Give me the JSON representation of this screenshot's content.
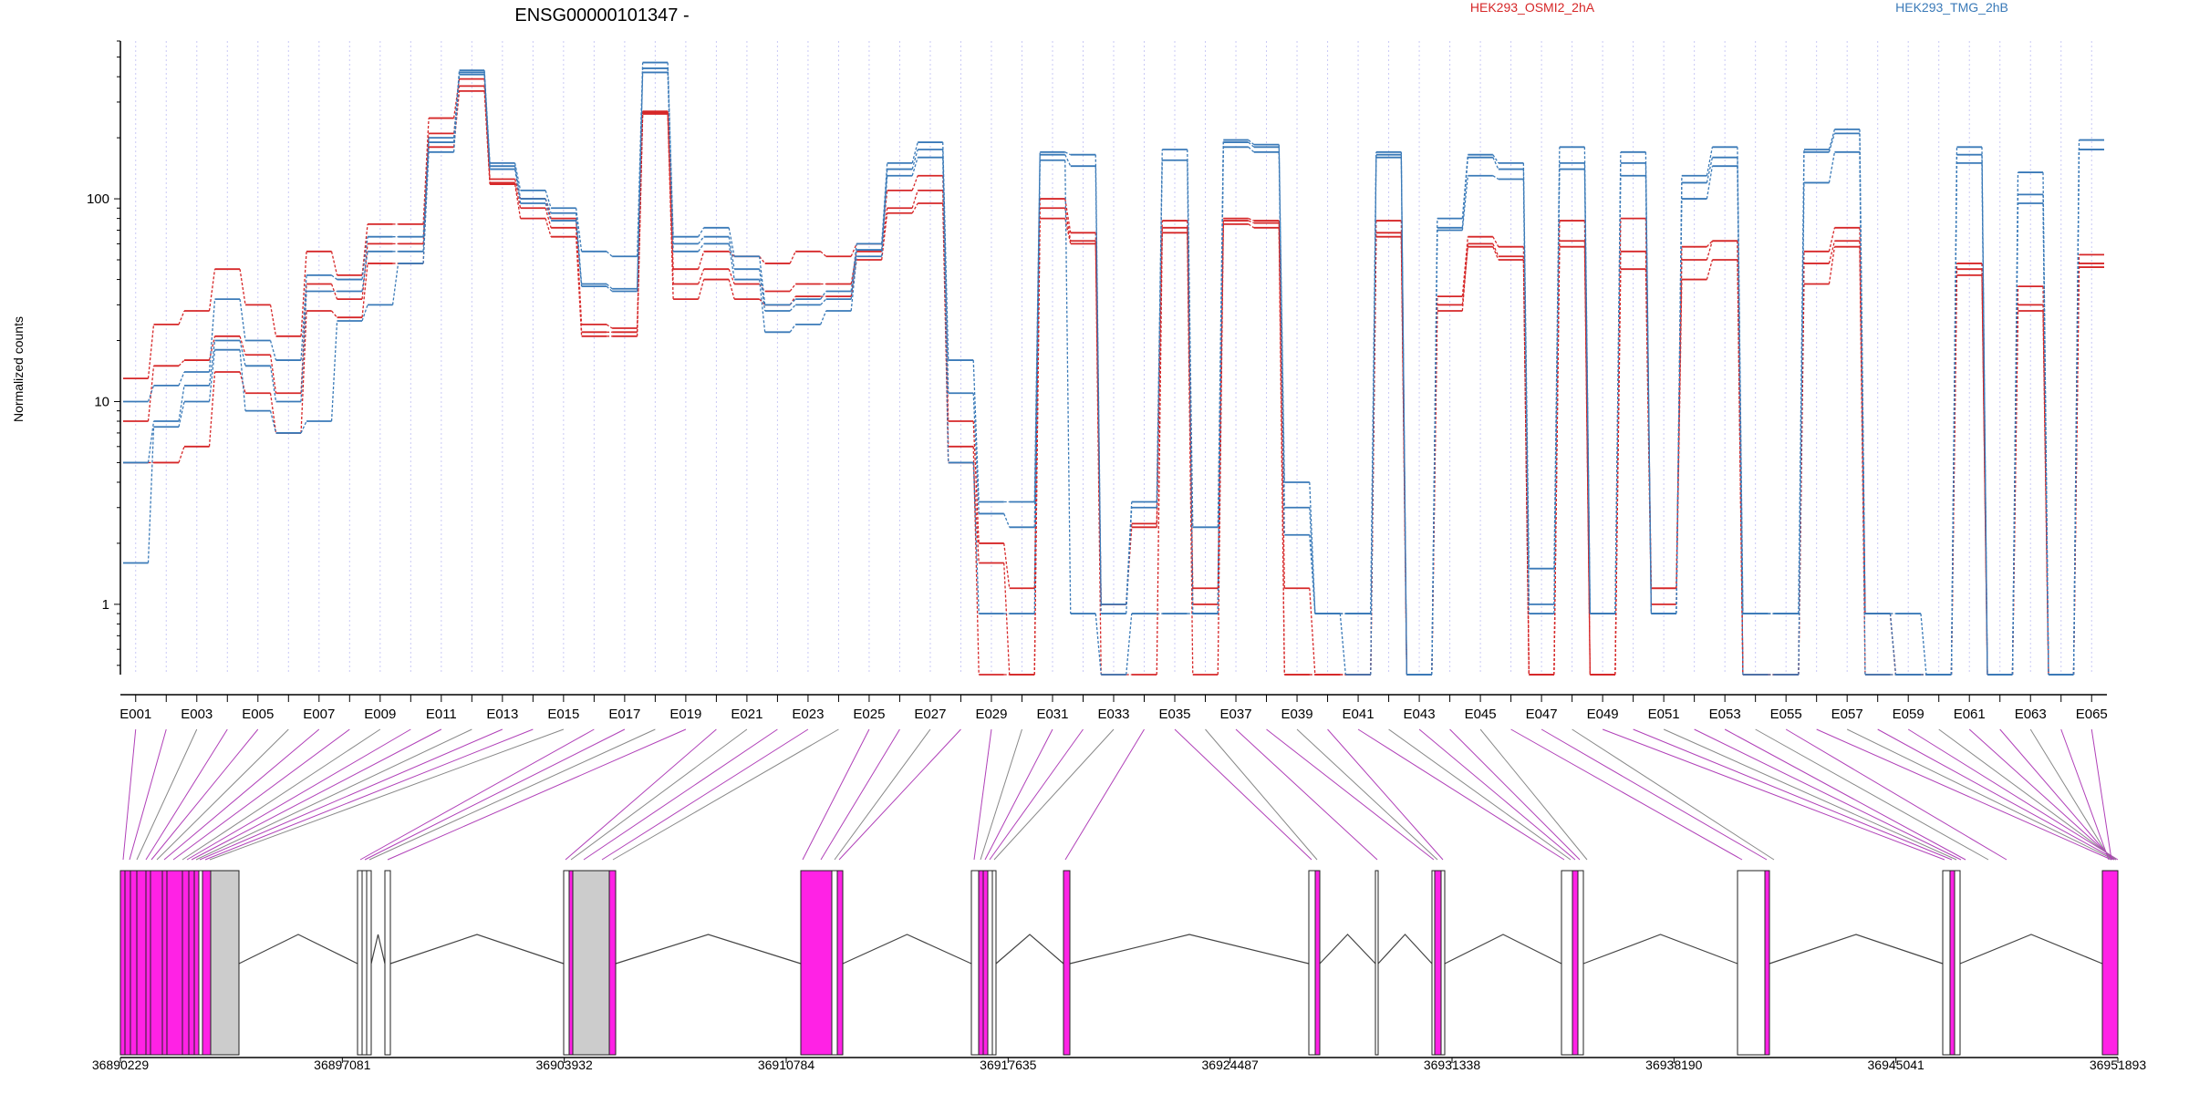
{
  "chart_data": {
    "type": "line",
    "title": "ENSG00000101347 -",
    "ylabel": "Normalized counts",
    "y_scale": "log",
    "ylim": [
      0.45,
      600
    ],
    "y_ticks": [
      {
        "value": 1,
        "label": "1"
      },
      {
        "value": 10,
        "label": "10"
      },
      {
        "value": 100,
        "label": "100"
      }
    ],
    "x_tick_labels": [
      "E001",
      "E003",
      "E005",
      "E007",
      "E009",
      "E011",
      "E013",
      "E015",
      "E017",
      "E019",
      "E021",
      "E023",
      "E025",
      "E027",
      "E029",
      "E031",
      "E033",
      "E035",
      "E037",
      "E039",
      "E041",
      "E043",
      "E045",
      "E047",
      "E049",
      "E051",
      "E053",
      "E055",
      "E057",
      "E059",
      "E061",
      "E063",
      "E065"
    ],
    "legend": [
      {
        "name": "HEK293_OSMI2_2hA",
        "color": "#d62728"
      },
      {
        "name": "HEK293_TMG_2hB",
        "color": "#3a7ab8"
      }
    ],
    "grid": "vertical dotted per exon",
    "series": [
      {
        "name": "HEK293_OSMI2_2hA",
        "color": "#d62728",
        "values": [
          13,
          24,
          28,
          45,
          30,
          21,
          55,
          42,
          75,
          75,
          250,
          390,
          125,
          100,
          80,
          24,
          23,
          270,
          45,
          55,
          52,
          48,
          55,
          52,
          60,
          110,
          130,
          8,
          2,
          1.2,
          100,
          68,
          1,
          2.5,
          78,
          1.2,
          80,
          78,
          1.2,
          0.45,
          0.45,
          78,
          0.45,
          33,
          65,
          58,
          0.45,
          78,
          0.45,
          80,
          1.2,
          58,
          62,
          0.45,
          0.45,
          55,
          72,
          0.9,
          0.45,
          0.45,
          48,
          0.45,
          37,
          0.45,
          53
        ]
      },
      {
        "name": "HEK293_OSMI2_2hA",
        "color": "#d62728",
        "values": [
          8,
          15,
          16,
          21,
          17,
          11,
          38,
          32,
          60,
          60,
          210,
          360,
          120,
          90,
          72,
          22,
          22,
          265,
          38,
          45,
          38,
          35,
          38,
          38,
          55,
          90,
          110,
          6,
          0.45,
          0.45,
          90,
          62,
          1,
          2.4,
          72,
          1,
          78,
          76,
          0.45,
          0.45,
          0.45,
          68,
          0.45,
          28,
          60,
          52,
          0.45,
          62,
          0.45,
          55,
          1.2,
          50,
          62,
          0.45,
          0.45,
          48,
          62,
          0.9,
          0.45,
          0.45,
          45,
          0.45,
          30,
          0.45,
          48
        ]
      },
      {
        "name": "HEK293_OSMI2_2hA",
        "color": "#d62728",
        "values": [
          5,
          5,
          6,
          14,
          11,
          7,
          28,
          26,
          48,
          48,
          180,
          340,
          118,
          80,
          65,
          21,
          21,
          262,
          32,
          40,
          32,
          30,
          33,
          33,
          50,
          85,
          95,
          5,
          1.6,
          0.45,
          80,
          60,
          0.45,
          0.45,
          68,
          0.45,
          75,
          72,
          0.45,
          0.45,
          0.45,
          65,
          0.45,
          30,
          58,
          50,
          0.45,
          58,
          0.45,
          45,
          1,
          40,
          50,
          0.45,
          0.45,
          38,
          58,
          0.45,
          0.45,
          0.45,
          42,
          0.45,
          28,
          0.45,
          46
        ]
      },
      {
        "name": "HEK293_TMG_2hB",
        "color": "#3a7ab8",
        "values": [
          10,
          12,
          14,
          32,
          20,
          16,
          42,
          40,
          65,
          65,
          200,
          430,
          150,
          110,
          90,
          55,
          52,
          470,
          65,
          72,
          52,
          30,
          32,
          35,
          60,
          150,
          190,
          16,
          3.2,
          3.2,
          170,
          165,
          1,
          3.2,
          175,
          2.4,
          195,
          185,
          4,
          0.9,
          0.9,
          170,
          0.45,
          80,
          165,
          150,
          1.5,
          180,
          0.9,
          170,
          0.9,
          130,
          180,
          0.9,
          0.9,
          175,
          220,
          0.9,
          0.9,
          0.45,
          180,
          0.45,
          135,
          0.45,
          195
        ]
      },
      {
        "name": "HEK293_TMG_2hB",
        "color": "#3a7ab8",
        "values": [
          5,
          8,
          12,
          20,
          15,
          10,
          35,
          35,
          55,
          55,
          190,
          420,
          145,
          100,
          85,
          38,
          36,
          440,
          60,
          65,
          45,
          28,
          30,
          32,
          56,
          140,
          175,
          11,
          2.8,
          2.4,
          165,
          145,
          0.9,
          3,
          155,
          0.9,
          190,
          180,
          3,
          0.9,
          0.9,
          165,
          0.45,
          72,
          160,
          140,
          1,
          150,
          0.9,
          150,
          0.9,
          120,
          160,
          0.9,
          0.9,
          170,
          210,
          0.9,
          0.45,
          0.45,
          165,
          0.45,
          105,
          0.45,
          175
        ]
      },
      {
        "name": "HEK293_TMG_2hB",
        "color": "#3a7ab8",
        "values": [
          1.6,
          7.5,
          10,
          18,
          9,
          7,
          8,
          25,
          30,
          48,
          170,
          410,
          140,
          95,
          78,
          37,
          35,
          420,
          55,
          60,
          40,
          22,
          24,
          28,
          52,
          130,
          160,
          5,
          0.9,
          0.9,
          155,
          0.9,
          0.45,
          0.9,
          0.9,
          0.9,
          180,
          170,
          2.2,
          0.9,
          0.45,
          160,
          0.45,
          70,
          130,
          125,
          0.9,
          140,
          0.9,
          130,
          0.9,
          100,
          145,
          0.45,
          0.45,
          120,
          170,
          0.45,
          0.45,
          0.45,
          150,
          0.45,
          95,
          0.45,
          175
        ]
      }
    ],
    "genome_axis": {
      "tick_labels": [
        "36890229",
        "36897081",
        "36903932",
        "36910784",
        "36917635",
        "36924487",
        "36931338",
        "36938190",
        "36945041",
        "36951893"
      ]
    }
  }
}
